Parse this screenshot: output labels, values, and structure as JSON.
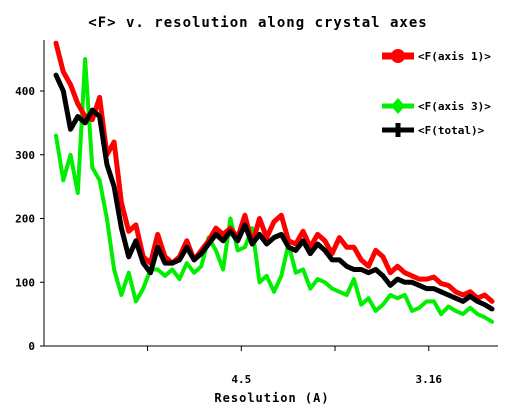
{
  "chart_data": {
    "type": "line",
    "title": "<F> v. resolution along crystal axes",
    "xlabel": "Resolution (A)",
    "ylabel": "",
    "ylim": [
      0,
      480
    ],
    "yticks": [
      0,
      100,
      200,
      300,
      400
    ],
    "x_tick_labels": [
      {
        "label": "",
        "pos": 0.21
      },
      {
        "label": "4.5",
        "pos": 0.425
      },
      {
        "label": "",
        "pos": 0.64
      },
      {
        "label": "3.16",
        "pos": 0.855
      }
    ],
    "legend": {
      "placement": "top-right",
      "entries": [
        "<F(axis 1)>",
        "<F(axis 3)>",
        "<F(total)>"
      ]
    },
    "series": [
      {
        "name": "<F(axis 1)>",
        "color": "#ff0000",
        "values": [
          475,
          430,
          410,
          380,
          360,
          355,
          390,
          300,
          320,
          225,
          180,
          190,
          140,
          130,
          175,
          140,
          130,
          140,
          165,
          135,
          150,
          165,
          185,
          175,
          185,
          170,
          205,
          160,
          200,
          170,
          195,
          205,
          165,
          160,
          180,
          155,
          175,
          165,
          145,
          170,
          155,
          155,
          135,
          125,
          150,
          140,
          115,
          125,
          115,
          110,
          105,
          105,
          108,
          98,
          95,
          85,
          80,
          85,
          75,
          80,
          70
        ]
      },
      {
        "name": "<F(axis 3)>",
        "color": "#00ee00",
        "values": [
          330,
          260,
          300,
          240,
          450,
          280,
          260,
          200,
          120,
          80,
          115,
          70,
          90,
          120,
          120,
          110,
          120,
          105,
          130,
          115,
          125,
          170,
          150,
          120,
          200,
          150,
          155,
          185,
          100,
          110,
          85,
          110,
          160,
          115,
          120,
          90,
          105,
          100,
          90,
          85,
          80,
          105,
          65,
          75,
          55,
          65,
          80,
          75,
          80,
          55,
          60,
          70,
          70,
          50,
          62,
          55,
          50,
          60,
          50,
          45,
          38
        ]
      },
      {
        "name": "<F(total)>",
        "color": "#000000",
        "values": [
          425,
          400,
          340,
          360,
          350,
          370,
          360,
          285,
          250,
          185,
          140,
          165,
          130,
          115,
          155,
          130,
          130,
          135,
          155,
          135,
          145,
          160,
          175,
          165,
          180,
          165,
          190,
          160,
          175,
          160,
          170,
          175,
          155,
          150,
          165,
          145,
          160,
          150,
          135,
          135,
          125,
          120,
          120,
          115,
          120,
          110,
          95,
          105,
          100,
          100,
          95,
          90,
          90,
          85,
          80,
          75,
          70,
          78,
          70,
          65,
          58
        ]
      }
    ]
  }
}
